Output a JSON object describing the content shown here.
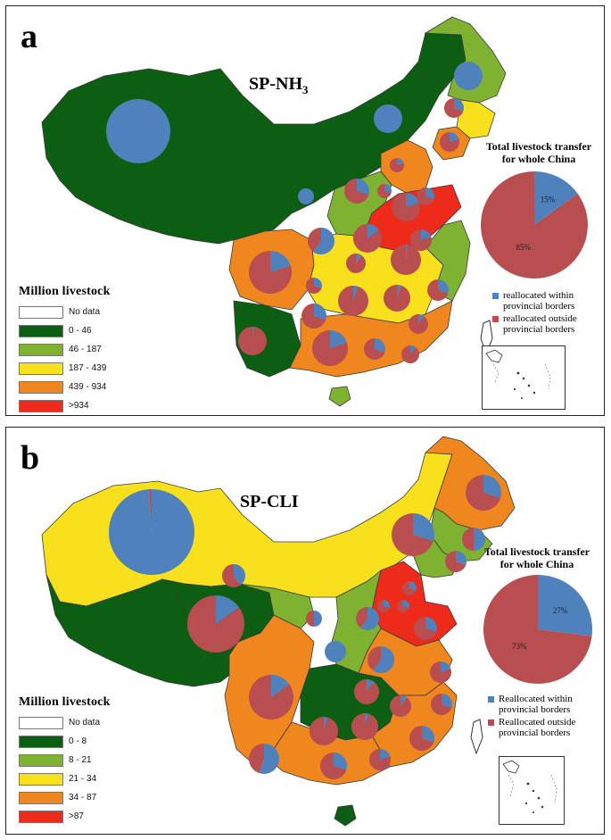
{
  "colors": {
    "class1": "#0b5e12",
    "class2": "#7fb231",
    "class3": "#f8e11c",
    "class4": "#f0861e",
    "class5": "#ee2a1a",
    "nodata": "#ffffff",
    "within": "#4f81bd",
    "outside": "#b84e50"
  },
  "panel_a": {
    "letter": "a",
    "title_main": "SP-NH",
    "title_sub": "3",
    "legend": {
      "title": "Million livestock",
      "items": [
        {
          "label": "No data",
          "color": "#ffffff"
        },
        {
          "label": "0 - 46",
          "color": "#0b5e12"
        },
        {
          "label": "46 - 187",
          "color": "#7fb231"
        },
        {
          "label": "187 - 439",
          "color": "#f8e11c"
        },
        {
          "label": "439 - 934",
          "color": "#f0861e"
        },
        {
          "label": ">934",
          "color": "#ee2a1a"
        }
      ]
    },
    "summary_pie": {
      "title_line1": "Total livestock transfer",
      "title_line2": "for whole China",
      "within_pct": 15,
      "outside_pct": 85,
      "within_label": "15%",
      "outside_label": "85%",
      "legend_within": "reallocated within provincial borders",
      "legend_outside": "reallocated outside provincial borders"
    }
  },
  "panel_b": {
    "letter": "b",
    "title_main": "SP-CLI",
    "legend": {
      "title": "Million livestock",
      "items": [
        {
          "label": "No data",
          "color": "#ffffff"
        },
        {
          "label": "0 - 8",
          "color": "#0b5e12"
        },
        {
          "label": "8 - 21",
          "color": "#7fb231"
        },
        {
          "label": "21 - 34",
          "color": "#f8e11c"
        },
        {
          "label": "34 - 87",
          "color": "#f0861e"
        },
        {
          "label": ">87",
          "color": "#ee2a1a"
        }
      ]
    },
    "summary_pie": {
      "title_line1": "Total livestock transfer",
      "title_line2": "for whole China",
      "within_pct": 27,
      "outside_pct": 73,
      "within_label": "27%",
      "outside_label": "73%",
      "legend_within": "Reallocated within provincial borders",
      "legend_outside": "Reallocated outside provincial borders"
    }
  }
}
